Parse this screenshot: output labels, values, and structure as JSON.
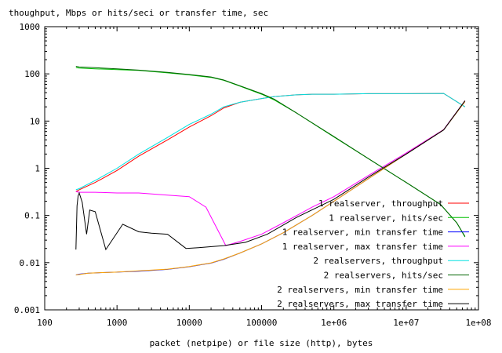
{
  "chart_data": {
    "type": "line",
    "title": "",
    "ylabel": "thoughput, Mbps or hits/seci or transfer time, sec",
    "xlabel": "packet (netpipe) or file size (http), bytes",
    "xscale": "log",
    "yscale": "log",
    "xlim": [
      100,
      100000000
    ],
    "ylim": [
      0.001,
      1000
    ],
    "grid": false,
    "legend_position": "bottom-right",
    "x_ticks": [
      {
        "value": 100,
        "label": "100"
      },
      {
        "value": 1000,
        "label": "1000"
      },
      {
        "value": 10000,
        "label": "10000"
      },
      {
        "value": 100000,
        "label": "100000"
      },
      {
        "value": 1000000,
        "label": "1e+06"
      },
      {
        "value": 10000000,
        "label": "1e+07"
      },
      {
        "value": 100000000,
        "label": "1e+08"
      }
    ],
    "y_ticks": [
      {
        "value": 0.001,
        "label": "0.001"
      },
      {
        "value": 0.01,
        "label": "0.01"
      },
      {
        "value": 0.1,
        "label": "0.1"
      },
      {
        "value": 1,
        "label": "1"
      },
      {
        "value": 10,
        "label": "10"
      },
      {
        "value": 100,
        "label": "100"
      },
      {
        "value": 1000,
        "label": "1000"
      }
    ],
    "series": [
      {
        "name": "1 realserver,         throughput",
        "color": "#ff0000",
        "x": [
          270,
          300,
          500,
          1000,
          2000,
          5000,
          10000,
          20000,
          30000,
          50000,
          100000,
          150000,
          300000,
          500000,
          1000000,
          3000000,
          10000000,
          33000000,
          65000000
        ],
        "y": [
          0.32,
          0.35,
          0.5,
          0.9,
          1.8,
          4,
          7.5,
          13,
          19,
          25,
          30,
          33,
          36,
          37,
          37,
          38,
          38,
          38.5,
          20
        ]
      },
      {
        "name": "1 realserver,           hits/sec",
        "color": "#00c000",
        "x": [
          270,
          300,
          500,
          1000,
          2000,
          5000,
          10000,
          20000,
          30000,
          50000,
          100000,
          150000,
          300000,
          1000000,
          3000000,
          10000000,
          30000000,
          50000000,
          65000000
        ],
        "y": [
          135,
          133,
          128,
          123,
          118,
          105,
          95,
          84,
          73,
          55,
          37,
          28,
          15,
          4.6,
          1.6,
          0.5,
          0.17,
          0.07,
          0.035
        ]
      },
      {
        "name": "1 realserver,  min transfer time",
        "color": "#0000ff",
        "x": [
          270,
          300,
          400,
          1000,
          2000,
          5000,
          10000,
          20000,
          30000,
          50000,
          100000,
          200000,
          500000,
          1000000,
          3000000,
          10000000,
          33000000,
          65000000
        ],
        "y": [
          0.0055,
          0.0057,
          0.006,
          0.0063,
          0.0066,
          0.0072,
          0.0082,
          0.0098,
          0.0118,
          0.016,
          0.025,
          0.043,
          0.1,
          0.2,
          0.6,
          2,
          6.5,
          26
        ]
      },
      {
        "name": "1 realserver,  max transfer time",
        "color": "#ff00ff",
        "x": [
          270,
          300,
          500,
          1000,
          2000,
          5000,
          10000,
          17000,
          32000,
          50000,
          100000,
          200000,
          500000,
          1000000,
          3000000,
          10000000,
          33000000,
          65000000
        ],
        "y": [
          0.32,
          0.31,
          0.31,
          0.3,
          0.3,
          0.27,
          0.25,
          0.15,
          0.023,
          0.028,
          0.04,
          0.07,
          0.15,
          0.25,
          0.7,
          2.1,
          6.6,
          27
        ]
      },
      {
        "name": "2 realservers,       throughput",
        "color": "#00e0e0",
        "x": [
          270,
          300,
          500,
          1000,
          2000,
          5000,
          10000,
          20000,
          30000,
          50000,
          100000,
          150000,
          300000,
          500000,
          1000000,
          3000000,
          10000000,
          33000000,
          65000000
        ],
        "y": [
          0.35,
          0.37,
          0.55,
          1.0,
          2.0,
          4.5,
          8.5,
          14,
          20,
          25,
          30,
          33,
          36,
          37,
          37,
          38,
          38,
          38.5,
          20
        ]
      },
      {
        "name": "2 realservers,         hits/sec",
        "color": "#006400",
        "x": [
          270,
          300,
          500,
          1000,
          2000,
          5000,
          10000,
          20000,
          30000,
          50000,
          100000,
          150000,
          300000,
          1000000,
          3000000,
          10000000,
          30000000,
          50000000,
          65000000
        ],
        "y": [
          145,
          140,
          135,
          128,
          120,
          108,
          97,
          86,
          74,
          56,
          38,
          29,
          15,
          4.7,
          1.6,
          0.5,
          0.17,
          0.07,
          0.036
        ]
      },
      {
        "name": "2 realservers, min transfer time",
        "color": "#ffa500",
        "x": [
          270,
          300,
          400,
          1000,
          2000,
          5000,
          10000,
          20000,
          30000,
          50000,
          100000,
          200000,
          500000,
          1000000,
          3000000,
          10000000,
          33000000,
          65000000
        ],
        "y": [
          0.0055,
          0.0056,
          0.006,
          0.0063,
          0.0067,
          0.0073,
          0.0083,
          0.0099,
          0.012,
          0.016,
          0.025,
          0.043,
          0.1,
          0.2,
          0.6,
          2,
          6.5,
          26
        ]
      },
      {
        "name": "2 realservers, max transfer time",
        "color": "#000000",
        "x": [
          270,
          280,
          290,
          300,
          330,
          380,
          420,
          500,
          700,
          1200,
          2000,
          3000,
          5000,
          9000,
          15000,
          30000,
          60000,
          120000,
          300000,
          1000000,
          3000000,
          10000000,
          33000000,
          65000000
        ],
        "y": [
          0.019,
          0.16,
          0.26,
          0.3,
          0.19,
          0.04,
          0.13,
          0.12,
          0.019,
          0.065,
          0.045,
          0.042,
          0.04,
          0.02,
          0.021,
          0.023,
          0.027,
          0.04,
          0.09,
          0.22,
          0.65,
          2,
          6.5,
          27
        ]
      }
    ]
  }
}
